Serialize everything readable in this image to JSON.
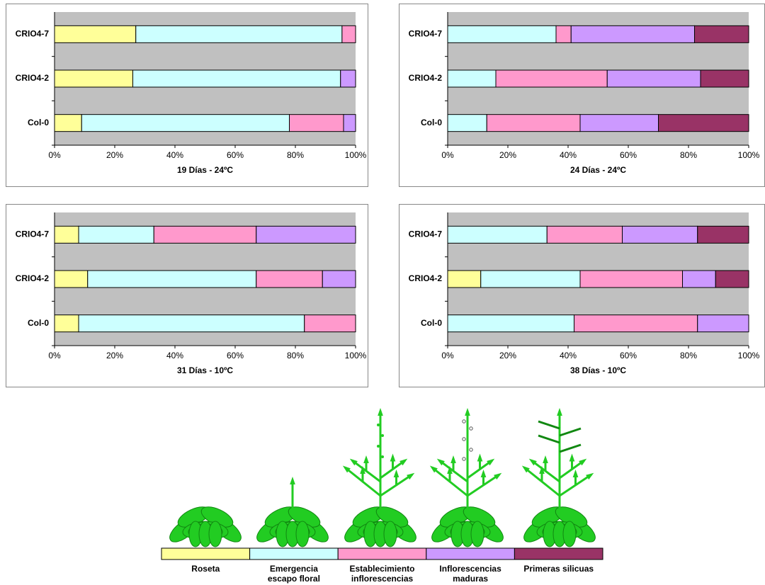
{
  "chart_data": [
    {
      "type": "bar",
      "orientation": "horizontal",
      "stacked": true,
      "xlabel": "19 Días - 24ºC",
      "categories": [
        "Col-0",
        "CRIO4-2",
        "CRIO4-7"
      ],
      "series": [
        {
          "name": "Roseta",
          "color": "#ffff99",
          "values": [
            9,
            26,
            27
          ]
        },
        {
          "name": "Emergencia escapo floral",
          "color": "#ccffff",
          "values": [
            69,
            69,
            68.5
          ]
        },
        {
          "name": "Establecimiento inflorescencias",
          "color": "#ff99cc",
          "values": [
            18,
            0,
            4.5
          ]
        },
        {
          "name": "Inflorescencias maduras",
          "color": "#cc99ff",
          "values": [
            4,
            5,
            0
          ]
        },
        {
          "name": "Primeras silicuas",
          "color": "#993366",
          "values": [
            0,
            0,
            0
          ]
        }
      ],
      "xlim": [
        0,
        100
      ],
      "xticks": [
        {
          "value": 0,
          "label": "0%"
        },
        {
          "value": 20,
          "label": "20%"
        },
        {
          "value": 40,
          "label": "40%"
        },
        {
          "value": 60,
          "label": "60%"
        },
        {
          "value": 80,
          "label": "80%"
        },
        {
          "value": 100,
          "label": "100%"
        }
      ]
    },
    {
      "type": "bar",
      "orientation": "horizontal",
      "stacked": true,
      "xlabel": "24 Días - 24ºC",
      "categories": [
        "Col-0",
        "CRIO4-2",
        "CRIO4-7"
      ],
      "series": [
        {
          "name": "Roseta",
          "color": "#ffff99",
          "values": [
            0,
            0,
            0
          ]
        },
        {
          "name": "Emergencia escapo floral",
          "color": "#ccffff",
          "values": [
            13,
            16,
            36
          ]
        },
        {
          "name": "Establecimiento inflorescencias",
          "color": "#ff99cc",
          "values": [
            31,
            37,
            5
          ]
        },
        {
          "name": "Inflorescencias maduras",
          "color": "#cc99ff",
          "values": [
            26,
            31,
            41
          ]
        },
        {
          "name": "Primeras silicuas",
          "color": "#993366",
          "values": [
            30,
            16,
            18
          ]
        }
      ],
      "xlim": [
        0,
        100
      ],
      "xticks": [
        {
          "value": 0,
          "label": "0%"
        },
        {
          "value": 20,
          "label": "20%"
        },
        {
          "value": 40,
          "label": "40%"
        },
        {
          "value": 60,
          "label": "60%"
        },
        {
          "value": 80,
          "label": "80%"
        },
        {
          "value": 100,
          "label": "100%"
        }
      ]
    },
    {
      "type": "bar",
      "orientation": "horizontal",
      "stacked": true,
      "xlabel": "31 Días - 10ºC",
      "categories": [
        "Col-0",
        "CRIO4-2",
        "CRIO4-7"
      ],
      "series": [
        {
          "name": "Roseta",
          "color": "#ffff99",
          "values": [
            8,
            11,
            8
          ]
        },
        {
          "name": "Emergencia escapo floral",
          "color": "#ccffff",
          "values": [
            75,
            56,
            25
          ]
        },
        {
          "name": "Establecimiento inflorescencias",
          "color": "#ff99cc",
          "values": [
            17,
            22,
            34
          ]
        },
        {
          "name": "Inflorescencias maduras",
          "color": "#cc99ff",
          "values": [
            0,
            11,
            33
          ]
        },
        {
          "name": "Primeras silicuas",
          "color": "#993366",
          "values": [
            0,
            0,
            0
          ]
        }
      ],
      "xlim": [
        0,
        100
      ],
      "xticks": [
        {
          "value": 0,
          "label": "0%"
        },
        {
          "value": 20,
          "label": "20%"
        },
        {
          "value": 40,
          "label": "40%"
        },
        {
          "value": 60,
          "label": "60%"
        },
        {
          "value": 80,
          "label": "80%"
        },
        {
          "value": 100,
          "label": "100%"
        }
      ]
    },
    {
      "type": "bar",
      "orientation": "horizontal",
      "stacked": true,
      "xlabel": "38 Días - 10ºC",
      "categories": [
        "Col-0",
        "CRIO4-2",
        "CRIO4-7"
      ],
      "series": [
        {
          "name": "Roseta",
          "color": "#ffff99",
          "values": [
            0,
            11,
            0
          ]
        },
        {
          "name": "Emergencia escapo floral",
          "color": "#ccffff",
          "values": [
            42,
            33,
            33
          ]
        },
        {
          "name": "Establecimiento inflorescencias",
          "color": "#ff99cc",
          "values": [
            41,
            34,
            25
          ]
        },
        {
          "name": "Inflorescencias maduras",
          "color": "#cc99ff",
          "values": [
            17,
            11,
            25
          ]
        },
        {
          "name": "Primeras silicuas",
          "color": "#993366",
          "values": [
            0,
            11,
            17
          ]
        }
      ],
      "xlim": [
        0,
        100
      ],
      "xticks": [
        {
          "value": 0,
          "label": "0%"
        },
        {
          "value": 20,
          "label": "20%"
        },
        {
          "value": 40,
          "label": "40%"
        },
        {
          "value": 60,
          "label": "60%"
        },
        {
          "value": 80,
          "label": "80%"
        },
        {
          "value": 100,
          "label": "100%"
        }
      ]
    }
  ]
}
